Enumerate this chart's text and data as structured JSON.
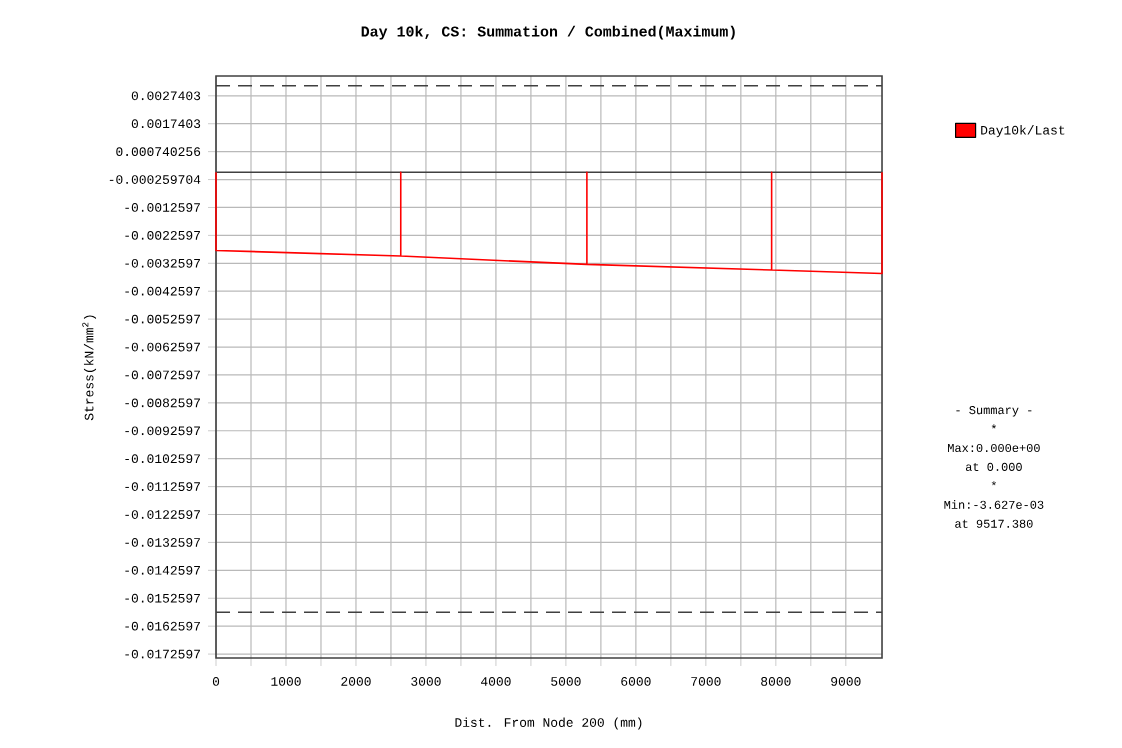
{
  "chart_data": {
    "type": "line",
    "title": "Day 10k, CS: Summation / Combined(Maximum)",
    "xlabel": "Dist. From Node 200 (mm)",
    "ylabel": "Stress(kN/mm$^{2}$)",
    "series": [
      {
        "name": "Day10k/Last",
        "color": "#ff0000",
        "x": [
          0,
          0,
          2640,
          2640,
          2640,
          5300,
          5300,
          5300,
          7940,
          7940,
          7940,
          9517.38,
          9517.38
        ],
        "values": [
          0,
          -0.0028,
          -0.003,
          0,
          -0.003,
          -0.0033,
          0,
          -0.0033,
          -0.0035,
          0,
          -0.0035,
          -0.003627,
          0
        ]
      }
    ],
    "xlim": [
      0,
      9517.38
    ],
    "ylim": [
      -0.0174,
      0.00345
    ],
    "xticks": [
      0,
      {
        "value": 500,
        "label": null
      },
      1000,
      {
        "value": 1500,
        "label": null
      },
      2000,
      {
        "value": 2500,
        "label": null
      },
      3000,
      {
        "value": 3500,
        "label": null
      },
      4000,
      {
        "value": 4500,
        "label": null
      },
      5000,
      {
        "value": 5500,
        "label": null
      },
      6000,
      {
        "value": 6500,
        "label": null
      },
      7000,
      {
        "value": 7500,
        "label": null
      },
      8000,
      {
        "value": 8500,
        "label": null
      },
      9000
    ],
    "yticks": [
      0.0027403,
      0.0017403,
      0.000740256,
      -0.000259704,
      -0.0012597,
      -0.0022597,
      -0.0032597,
      -0.0042597,
      -0.0052597,
      -0.0062597,
      -0.0072597,
      -0.0082597,
      -0.0092597,
      -0.0102597,
      -0.0112597,
      -0.0122597,
      -0.0132597,
      -0.0142597,
      -0.0152597,
      -0.0162597,
      -0.0172597
    ],
    "grid": true,
    "legend": "top right",
    "marker": "none",
    "line_style": "solid",
    "ref_lines": [
      {
        "axis": "y",
        "value": 0.0031,
        "color": "#404040",
        "line_style": "dashed"
      },
      {
        "axis": "y",
        "value": 0,
        "color": "#404040",
        "line_style": "solid"
      },
      {
        "axis": "y",
        "value": -0.01576,
        "color": "#404040",
        "line_style": "dashed"
      }
    ],
    "annotations": [
      "- Summary -",
      "*",
      "Max:0.000e+00",
      "at  0.000",
      "*",
      "Min:-3.627e-03",
      "at 9517.380"
    ]
  }
}
